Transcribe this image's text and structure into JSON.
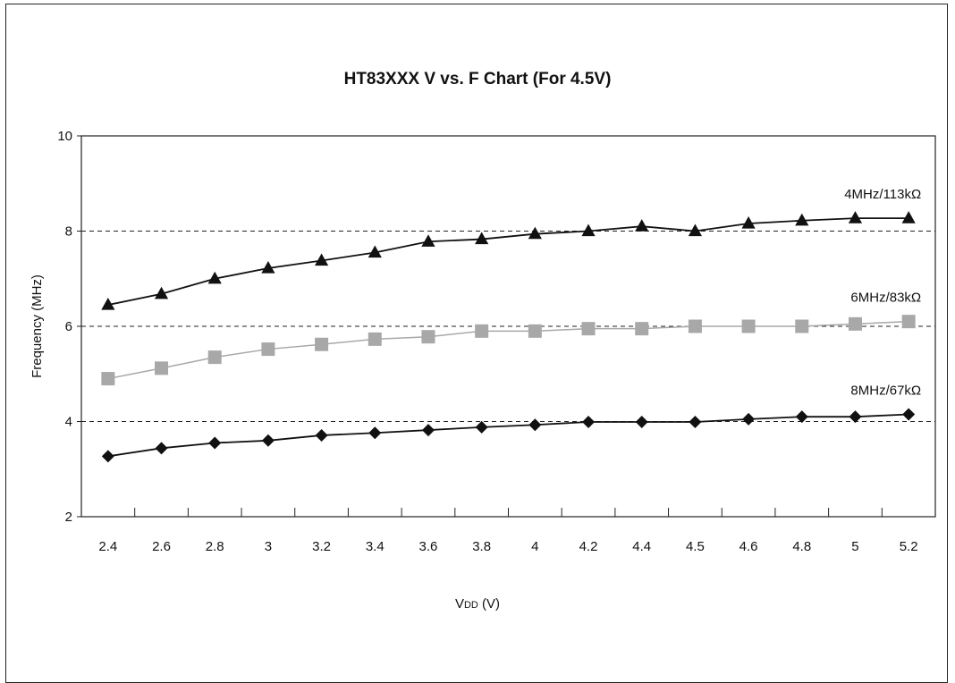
{
  "chart_data": {
    "type": "line",
    "title": "HT83XXX V vs. F Chart (For 4.5V)",
    "xlabel_main": "V",
    "xlabel_sub": "DD",
    "xlabel_unit": " (V)",
    "ylabel": "Frequency (MHz)",
    "x": [
      "2.4",
      "2.6",
      "2.8",
      "3",
      "3.2",
      "3.4",
      "3.6",
      "3.8",
      "4",
      "4.2",
      "4.4",
      "4.5",
      "4.6",
      "4.8",
      "5",
      "5.2"
    ],
    "ylim": [
      2,
      10
    ],
    "yticks": [
      "2",
      "4",
      "6",
      "8",
      "10"
    ],
    "grid": {
      "dashed_y": [
        4,
        6,
        8
      ]
    },
    "series": [
      {
        "name": "4MHz/113kΩ",
        "marker": "triangle",
        "color": "#111111",
        "values": [
          6.45,
          6.68,
          7.0,
          7.22,
          7.38,
          7.55,
          7.78,
          7.83,
          7.94,
          8.0,
          8.1,
          8.0,
          8.16,
          8.22,
          8.27,
          8.27
        ]
      },
      {
        "name": "6MHz/83kΩ",
        "marker": "square",
        "color": "#a8a8a8",
        "values": [
          4.9,
          5.12,
          5.35,
          5.52,
          5.62,
          5.73,
          5.78,
          5.9,
          5.9,
          5.95,
          5.95,
          6.0,
          6.0,
          6.0,
          6.05,
          6.1
        ]
      },
      {
        "name": "8MHz/67kΩ",
        "marker": "diamond",
        "color": "#111111",
        "values": [
          3.27,
          3.44,
          3.55,
          3.6,
          3.71,
          3.76,
          3.82,
          3.88,
          3.93,
          3.99,
          3.99,
          3.99,
          4.05,
          4.1,
          4.1,
          4.15
        ]
      }
    ]
  }
}
